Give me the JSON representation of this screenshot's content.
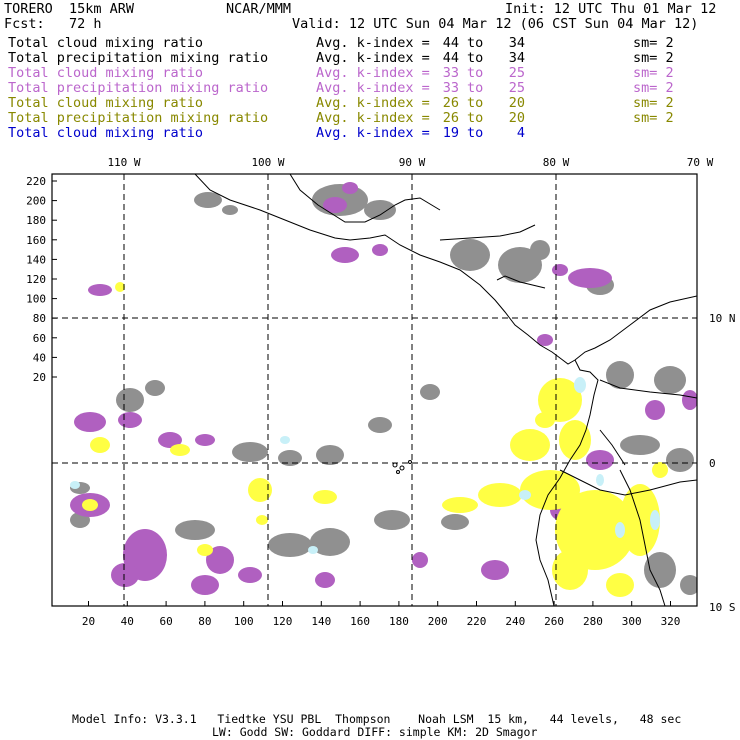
{
  "header": {
    "model": "TORERO  15km ARW",
    "org": "NCAR/MMM",
    "init": "Init: 12 UTC Thu 01 Mar 12",
    "fcst": "Fcst:   72 h",
    "valid": "Valid: 12 UTC Sun 04 Mar 12 (06 CST Sun 04 Mar 12)"
  },
  "legend": [
    {
      "label": "Total cloud mixing ratio",
      "avg": "Avg. k-index =",
      "from": "44",
      "to": "to",
      "upto": "34",
      "sm": "sm= 2",
      "color": "#000000"
    },
    {
      "label": "Total precipitation mixing ratio",
      "avg": "Avg. k-index =",
      "from": "44",
      "to": "to",
      "upto": "34",
      "sm": "sm= 2",
      "color": "#000000"
    },
    {
      "label": "Total cloud mixing ratio",
      "avg": "Avg. k-index =",
      "from": "33",
      "to": "to",
      "upto": "25",
      "sm": "sm= 2",
      "color": "#bb66cc"
    },
    {
      "label": "Total precipitation mixing ratio",
      "avg": "Avg. k-index =",
      "from": "33",
      "to": "to",
      "upto": "25",
      "sm": "sm= 2",
      "color": "#bb66cc"
    },
    {
      "label": "Total cloud mixing ratio",
      "avg": "Avg. k-index =",
      "from": "26",
      "to": "to",
      "upto": "20",
      "sm": "sm= 2",
      "color": "#888800"
    },
    {
      "label": "Total precipitation mixing ratio",
      "avg": "Avg. k-index =",
      "from": "26",
      "to": "to",
      "upto": "20",
      "sm": "sm= 2",
      "color": "#888800"
    },
    {
      "label": "Total cloud mixing ratio",
      "avg": "Avg. k-index =",
      "from": "19",
      "to": "to",
      "upto": "4",
      "sm": "",
      "color": "#0000cc"
    }
  ],
  "map": {
    "lon_labels": [
      "110 W",
      "100 W",
      "90 W",
      "80 W",
      "70 W"
    ],
    "lat_labels": [
      "10 N",
      "0",
      "10 S"
    ],
    "y_ticks": [
      "220",
      "200",
      "180",
      "160",
      "140",
      "120",
      "100",
      "80",
      "60",
      "40",
      "20"
    ],
    "x_ticks": [
      "20",
      "40",
      "60",
      "80",
      "100",
      "120",
      "140",
      "160",
      "180",
      "200",
      "220",
      "240",
      "260",
      "280",
      "300",
      "320"
    ],
    "colors": {
      "gray": "#909090",
      "purple": "#b060c0",
      "yellow": "#ffff44",
      "cyan": "#c8f0f8",
      "coast": "#000000",
      "grid": "#000000"
    }
  },
  "footer": {
    "line1": "Model Info: V3.3.1   Tiedtke YSU PBL  Thompson    Noah LSM  15 km,   44 levels,   48 sec",
    "line2": "LW: Godd SW: Goddard DIFF: simple KM: 2D Smagor"
  }
}
